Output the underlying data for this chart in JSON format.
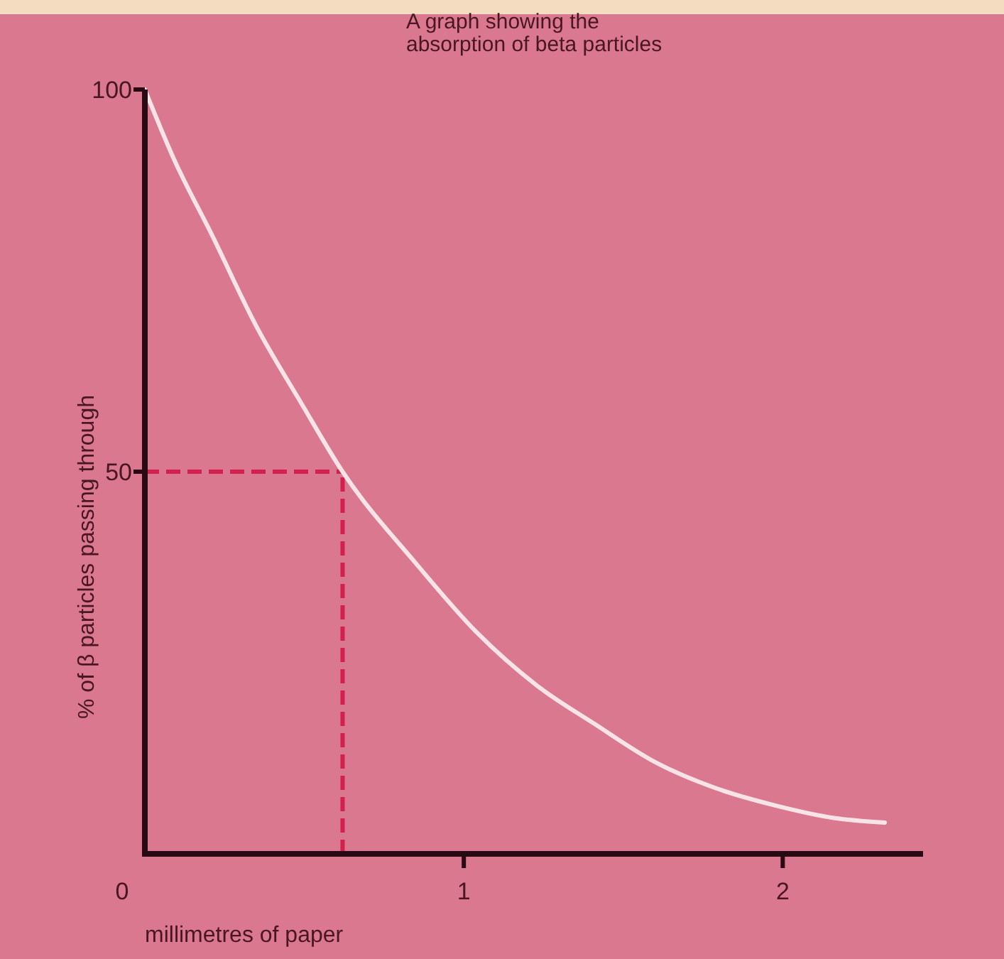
{
  "chart_data": {
    "type": "line",
    "title": "A graph showing the absorption of beta particles",
    "xlabel": "millimetres of paper",
    "ylabel": "% of β particles passing through",
    "x": [
      0,
      0.09,
      0.21,
      0.35,
      0.49,
      0.62,
      0.85,
      1.04,
      1.23,
      1.41,
      1.6,
      1.79,
      1.97,
      2.16,
      2.32
    ],
    "series": [
      {
        "color": "#f8e4e6",
        "values": [
          100,
          91,
          81,
          69,
          59,
          50,
          38,
          29,
          22,
          17,
          12,
          8.6,
          6.4,
          4.7,
          4.1
        ]
      }
    ],
    "xlim": [
      0,
      2.44
    ],
    "ylim": [
      0,
      100
    ],
    "xticks": [
      0,
      1,
      2
    ],
    "yticks": [
      50,
      100
    ],
    "grid": false,
    "marker": "none",
    "line_style": "solid",
    "ref_lines": [
      {
        "axis": "y",
        "value": 50,
        "color": "#d4204f",
        "line_style": "dashed"
      },
      {
        "axis": "x",
        "value": 0.62,
        "color": "#d4204f",
        "line_style": "dashed"
      }
    ]
  }
}
